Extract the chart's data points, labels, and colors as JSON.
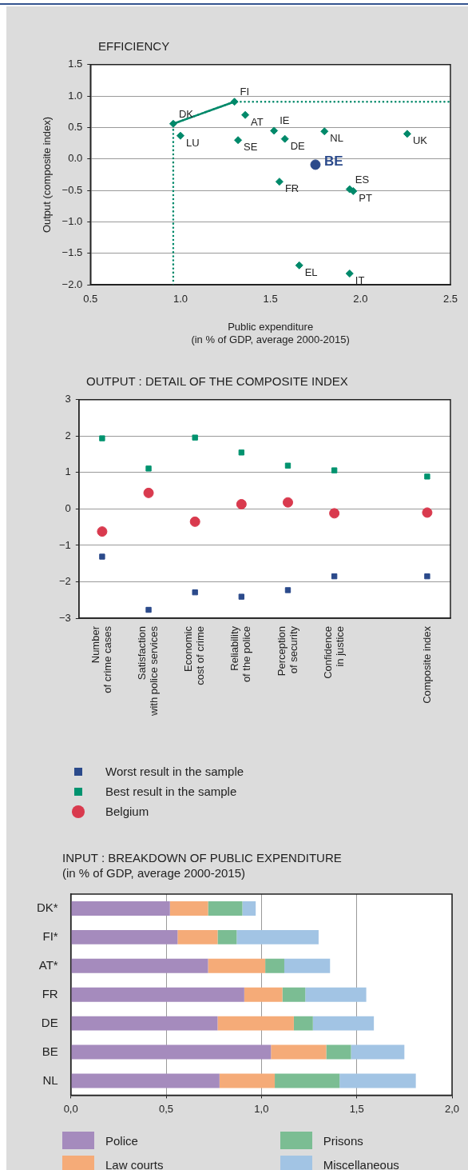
{
  "chart_data": [
    {
      "type": "scatter",
      "title": "EFFICIENCY",
      "xlabel": "Public expenditure (in % of GDP, average 2000-2015)",
      "ylabel": "Output (composite index)",
      "xlim": [
        0.5,
        2.5
      ],
      "ylim": [
        -2,
        1.5
      ],
      "xticks": [
        0.5,
        {
          "value": 1,
          "label": "1.0"
        },
        1.5,
        {
          "value": 2,
          "label": "2.0"
        },
        2.5
      ],
      "yticks": [
        {
          "value": -2,
          "label": "−2.0"
        },
        {
          "value": -1.5,
          "label": "−1.5"
        },
        {
          "value": -1,
          "label": "−1.0"
        },
        {
          "value": -0.5,
          "label": "−0.5"
        },
        {
          "value": 0,
          "label": "0.0"
        },
        0.5,
        {
          "value": 1,
          "label": "1.0"
        },
        1.5
      ],
      "grid": "y",
      "legend": false,
      "series": [
        {
          "type": "line",
          "color": "#00896a",
          "marker": "none",
          "line_style": "dotted",
          "x": [
            0.96,
            0.96,
            1.3,
            2.5
          ],
          "values": [
            -2,
            0.56,
            0.91,
            0.91
          ]
        },
        {
          "type": "line",
          "color": "#00896a",
          "marker": "none",
          "x": [
            0.96,
            1.3
          ],
          "values": [
            0.56,
            0.91
          ]
        },
        {
          "type": "scatter",
          "color": "#00896a",
          "marker": "diamond",
          "x": [
            0.96,
            1.3,
            1.36,
            1.0,
            1.32,
            1.52,
            1.58,
            1.8,
            2.26,
            1.55,
            1.94,
            1.96,
            1.66,
            1.94
          ],
          "values": [
            0.56,
            0.91,
            0.7,
            0.37,
            0.3,
            0.45,
            0.32,
            0.44,
            0.4,
            -0.36,
            -0.48,
            -0.51,
            -1.69,
            -1.82
          ]
        },
        {
          "type": "scatter",
          "name": "BE",
          "color": "#2b4a8b",
          "marker": "circle",
          "x": [
            1.75
          ],
          "values": [
            -0.09
          ]
        }
      ],
      "annotations": [
        {
          "text": "DK",
          "x": 0.96,
          "y": 0.56
        },
        {
          "text": "FI",
          "x": 1.3,
          "y": 0.91
        },
        {
          "text": "AT",
          "x": 1.36,
          "y": 0.7
        },
        {
          "text": "LU",
          "x": 1.0,
          "y": 0.37
        },
        {
          "text": "SE",
          "x": 1.32,
          "y": 0.3
        },
        {
          "text": "IE",
          "x": 1.52,
          "y": 0.45
        },
        {
          "text": "DE",
          "x": 1.58,
          "y": 0.32
        },
        {
          "text": "NL",
          "x": 1.8,
          "y": 0.44
        },
        {
          "text": "UK",
          "x": 2.26,
          "y": 0.4
        },
        {
          "text": "FR",
          "x": 1.55,
          "y": -0.36
        },
        {
          "text": "ES",
          "x": 1.94,
          "y": -0.48
        },
        {
          "text": "PT",
          "x": 1.96,
          "y": -0.51
        },
        {
          "text": "EL",
          "x": 1.66,
          "y": -1.69
        },
        {
          "text": "IT",
          "x": 1.94,
          "y": -1.82
        }
      ]
    },
    {
      "type": "scatter",
      "title": "OUTPUT : DETAIL OF THE COMPOSITE INDEX",
      "categories": [
        "Number of crime cases",
        "Satisfaction with police services",
        "Economic cost of crime",
        "Reliability of the police",
        "Perception of security",
        "Confidence in justice",
        null,
        "Composite index"
      ],
      "ylim": [
        -3,
        3
      ],
      "yticks": [
        {
          "value": -3,
          "label": "−3"
        },
        {
          "value": -2,
          "label": "−2"
        },
        {
          "value": -1,
          "label": "−1"
        },
        0,
        1,
        2,
        3
      ],
      "grid": "y",
      "legend": "bottom",
      "series": [
        {
          "name": "Worst result in the sample",
          "color": "#2b4a8b",
          "marker": "square",
          "values": [
            -1.31,
            -2.77,
            -2.29,
            -2.41,
            -2.23,
            -1.85,
            null,
            -1.85
          ]
        },
        {
          "name": "Best result in the sample",
          "color": "#00936f",
          "marker": "square",
          "values": [
            1.94,
            1.11,
            1.96,
            1.55,
            1.19,
            1.06,
            null,
            0.89
          ]
        },
        {
          "name": "Belgium",
          "color": "#d93a4e",
          "marker": "circle",
          "values": [
            -0.62,
            0.44,
            -0.35,
            0.13,
            0.18,
            -0.12,
            null,
            -0.1
          ]
        }
      ]
    },
    {
      "type": "bar",
      "orientation": "horizontal",
      "stacked": true,
      "title": "INPUT : BREAKDOWN OF PUBLIC EXPENDITURE",
      "subtitle": "(in % of GDP, average 2000-2015)",
      "categories": [
        "DK*",
        "FI*",
        "AT*",
        "FR",
        "DE",
        "BE",
        "NL"
      ],
      "xlim": [
        0,
        2
      ],
      "xticks": [
        {
          "value": 0,
          "label": "0,0"
        },
        {
          "value": 0.5,
          "label": "0,5"
        },
        {
          "value": 1,
          "label": "1,0"
        },
        {
          "value": 1.5,
          "label": "1,5"
        },
        {
          "value": 2,
          "label": "2,0"
        }
      ],
      "grid": "x",
      "legend": "bottom",
      "series": [
        {
          "name": "Police",
          "color": "#a58bbd",
          "values": [
            0.52,
            0.56,
            0.72,
            0.91,
            0.77,
            1.05,
            0.78
          ]
        },
        {
          "name": "Law courts",
          "color": "#f5ab78",
          "values": [
            0.2,
            0.21,
            0.3,
            0.2,
            0.4,
            0.29,
            0.29
          ]
        },
        {
          "name": "Prisons",
          "color": "#7bbd93",
          "values": [
            0.18,
            0.1,
            0.1,
            0.12,
            0.1,
            0.13,
            0.34
          ]
        },
        {
          "name": "Miscellaneous",
          "color": "#a2c4e4",
          "values": [
            0.07,
            0.43,
            0.24,
            0.32,
            0.32,
            0.28,
            0.4
          ]
        }
      ]
    }
  ]
}
